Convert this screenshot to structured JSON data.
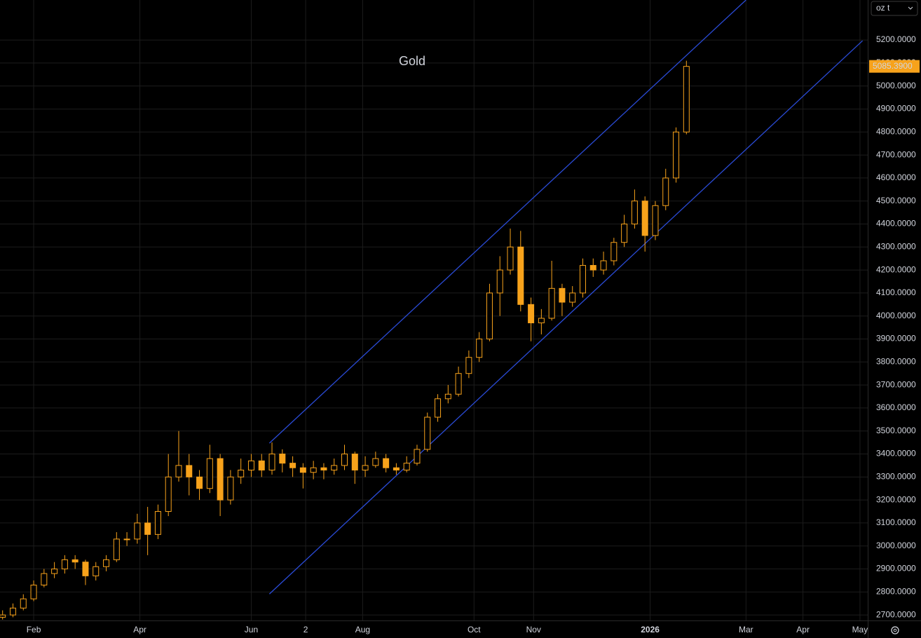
{
  "chart_data": {
    "type": "candlestick",
    "title": "Gold",
    "unit": "oz t",
    "color": "#f7a21b",
    "channel_color": "#2a4bd7",
    "last_price": {
      "value": 5085.39,
      "label": "5085.3900"
    },
    "xlim": [
      -1,
      334
    ],
    "xticks": [
      {
        "value": 12,
        "label": "Feb"
      },
      {
        "value": 53,
        "label": "Apr"
      },
      {
        "value": 96,
        "label": "Jun"
      },
      {
        "value": 117,
        "label": "2"
      },
      {
        "value": 139,
        "label": "Aug"
      },
      {
        "value": 182,
        "label": "Oct"
      },
      {
        "value": 205,
        "label": "Nov"
      },
      {
        "value": 250,
        "label": "2026"
      },
      {
        "value": 287,
        "label": "Mar"
      },
      {
        "value": 309,
        "label": "Apr"
      },
      {
        "value": 331,
        "label": "May"
      }
    ],
    "ylim": [
      2676,
      5374
    ],
    "yticks": [
      {
        "value": 2700,
        "label": "2700.0000"
      },
      {
        "value": 2800,
        "label": "2800.0000"
      },
      {
        "value": 2900,
        "label": "2900.0000"
      },
      {
        "value": 3000,
        "label": "3000.0000"
      },
      {
        "value": 3100,
        "label": "3100.0000"
      },
      {
        "value": 3200,
        "label": "3200.0000"
      },
      {
        "value": 3300,
        "label": "3300.0000"
      },
      {
        "value": 3400,
        "label": "3400.0000"
      },
      {
        "value": 3500,
        "label": "3500.0000"
      },
      {
        "value": 3600,
        "label": "3600.0000"
      },
      {
        "value": 3700,
        "label": "3700.0000"
      },
      {
        "value": 3800,
        "label": "3800.0000"
      },
      {
        "value": 3900,
        "label": "3900.0000"
      },
      {
        "value": 4000,
        "label": "4000.0000"
      },
      {
        "value": 4100,
        "label": "4100.0000"
      },
      {
        "value": 4200,
        "label": "4200.0000"
      },
      {
        "value": 4300,
        "label": "4300.0000"
      },
      {
        "value": 4400,
        "label": "4400.0000"
      },
      {
        "value": 4500,
        "label": "4500.0000"
      },
      {
        "value": 4600,
        "label": "4600.0000"
      },
      {
        "value": 4700,
        "label": "4700.0000"
      },
      {
        "value": 4800,
        "label": "4800.0000"
      },
      {
        "value": 4900,
        "label": "4900.0000"
      },
      {
        "value": 5000,
        "label": "5000.0000"
      },
      {
        "value": 5100,
        "label": "5100.0000"
      },
      {
        "value": 5200,
        "label": "5200.0000"
      }
    ],
    "grid": true,
    "x": [
      0,
      4,
      8,
      12,
      16,
      20,
      24,
      28,
      32,
      36,
      40,
      44,
      48,
      52,
      56,
      60,
      64,
      68,
      72,
      76,
      80,
      84,
      88,
      92,
      96,
      100,
      104,
      108,
      112,
      116,
      120,
      124,
      128,
      132,
      136,
      140,
      144,
      148,
      152,
      156,
      160,
      164,
      168,
      172,
      176,
      180,
      184,
      188,
      192,
      196,
      200,
      204,
      208,
      212,
      216,
      220,
      224,
      228,
      232,
      236,
      240,
      244,
      248,
      252,
      256,
      260,
      264
    ],
    "open": [
      2690,
      2700,
      2730,
      2770,
      2830,
      2880,
      2900,
      2940,
      2930,
      2870,
      2910,
      2940,
      3030,
      3030,
      3100,
      3050,
      3150,
      3300,
      3350,
      3300,
      3250,
      3380,
      3200,
      3300,
      3330,
      3370,
      3330,
      3400,
      3360,
      3340,
      3320,
      3340,
      3330,
      3350,
      3400,
      3330,
      3350,
      3380,
      3340,
      3330,
      3360,
      3420,
      3560,
      3640,
      3660,
      3750,
      3820,
      3900,
      4100,
      4200,
      4300,
      4050,
      3970,
      3990,
      4120,
      4060,
      4100,
      4220,
      4200,
      4240,
      4320,
      4400,
      4500,
      4350,
      4480,
      4600,
      4800
    ],
    "high": [
      2720,
      2750,
      2790,
      2850,
      2900,
      2930,
      2960,
      2960,
      2940,
      2930,
      2960,
      3060,
      3060,
      3140,
      3170,
      3180,
      3400,
      3500,
      3400,
      3330,
      3440,
      3400,
      3330,
      3380,
      3400,
      3400,
      3450,
      3420,
      3390,
      3360,
      3370,
      3360,
      3380,
      3440,
      3410,
      3390,
      3410,
      3400,
      3360,
      3390,
      3440,
      3580,
      3660,
      3700,
      3780,
      3850,
      3930,
      4140,
      4260,
      4380,
      4370,
      4080,
      4030,
      4240,
      4140,
      4130,
      4250,
      4250,
      4280,
      4340,
      4440,
      4550,
      4520,
      4500,
      4640,
      4820,
      5110
    ],
    "low": [
      2680,
      2690,
      2720,
      2760,
      2820,
      2860,
      2880,
      2900,
      2830,
      2850,
      2890,
      2930,
      3000,
      3010,
      2960,
      3030,
      3130,
      3280,
      3220,
      3200,
      3230,
      3130,
      3180,
      3270,
      3300,
      3300,
      3310,
      3320,
      3300,
      3250,
      3290,
      3290,
      3310,
      3330,
      3270,
      3300,
      3340,
      3320,
      3310,
      3320,
      3350,
      3410,
      3540,
      3620,
      3650,
      3730,
      3800,
      3890,
      4000,
      4180,
      4020,
      3890,
      3920,
      3980,
      4000,
      4040,
      4080,
      4170,
      4180,
      4220,
      4300,
      4380,
      4280,
      4330,
      4460,
      4580,
      4790
    ],
    "close": [
      2700,
      2730,
      2770,
      2830,
      2880,
      2900,
      2940,
      2930,
      2870,
      2910,
      2940,
      3030,
      3030,
      3100,
      3050,
      3150,
      3300,
      3350,
      3300,
      3250,
      3380,
      3200,
      3300,
      3330,
      3370,
      3330,
      3400,
      3360,
      3340,
      3320,
      3340,
      3330,
      3350,
      3400,
      3330,
      3350,
      3380,
      3340,
      3330,
      3360,
      3420,
      3560,
      3640,
      3660,
      3750,
      3820,
      3900,
      4100,
      4200,
      4300,
      4050,
      3970,
      3990,
      4120,
      4060,
      4100,
      4220,
      4200,
      4240,
      4320,
      4400,
      4500,
      4350,
      4480,
      4600,
      4800,
      5085.39
    ],
    "channel": [
      {
        "x": [
          103,
          287
        ],
        "values": [
          3447,
          5374
        ]
      },
      {
        "x": [
          103,
          332
        ],
        "values": [
          2791,
          5197
        ]
      }
    ]
  }
}
